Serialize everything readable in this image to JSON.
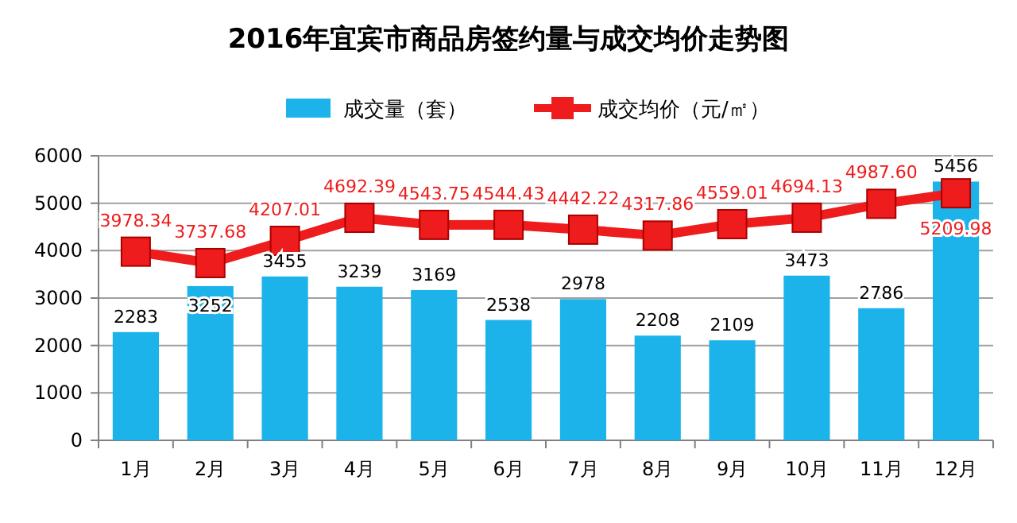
{
  "chart_data": {
    "type": "bar",
    "title": "2016年宜宾市商品房签约量与成交均价走势图",
    "categories": [
      "1月",
      "2月",
      "3月",
      "4月",
      "5月",
      "6月",
      "7月",
      "8月",
      "9月",
      "10月",
      "11月",
      "12月"
    ],
    "series": [
      {
        "name": "成交量（套）",
        "color": "#1cb3ea",
        "values": [
          2283,
          3252,
          3455,
          3239,
          3169,
          2538,
          2978,
          2208,
          2109,
          3473,
          2786,
          5456
        ],
        "value_labels": [
          "2283",
          "3252",
          "3455",
          "3239",
          "3169",
          "2538",
          "2978",
          "2208",
          "2109",
          "3473",
          "2786",
          "5456"
        ]
      },
      {
        "name": "成交均价（元/㎡）",
        "type": "line",
        "color": "#ee1c1c",
        "marker": "square",
        "values": [
          3978.34,
          3737.68,
          4207.01,
          4692.39,
          4543.75,
          4544.43,
          4442.22,
          4317.86,
          4559.01,
          4694.13,
          4987.6,
          5209.98
        ],
        "value_labels": [
          "3978.34",
          "3737.68",
          "4207.01",
          "4692.39",
          "4543.75",
          "4544.43",
          "4442.22",
          "4317.86",
          "4559.01",
          "4694.13",
          "4987.60",
          "5209.98"
        ]
      }
    ],
    "ylim": [
      0,
      6000
    ],
    "yticks": [
      0,
      1000,
      2000,
      3000,
      4000,
      5000,
      6000
    ],
    "grid": "y",
    "legend": "top"
  }
}
